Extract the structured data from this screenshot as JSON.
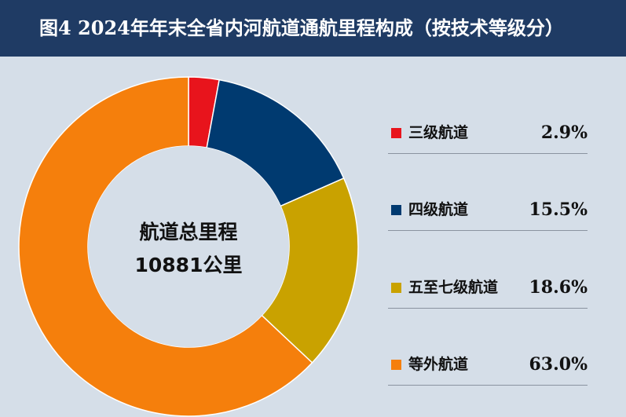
{
  "header": {
    "title": "图4  2024年年末全省内河航道通航里程构成（按技术等级分）"
  },
  "center": {
    "line1": "航道总里程",
    "line2": "10881公里"
  },
  "chart_data": {
    "type": "pie",
    "donut": true,
    "title": "图4  2024年年末全省内河航道通航里程构成（按技术等级分）",
    "unit": "%",
    "legend_position": "right",
    "start_angle_deg": 0,
    "direction": "clockwise",
    "slices": [
      {
        "label": "三级航道",
        "value": 2.9,
        "value_label": "2.9%",
        "color": "#e8141c"
      },
      {
        "label": "四级航道",
        "value": 15.5,
        "value_label": "15.5%",
        "color": "#003a70"
      },
      {
        "label": "五至七级航道",
        "value": 18.6,
        "value_label": "18.6%",
        "color": "#c9a200"
      },
      {
        "label": "等外航道",
        "value": 63.0,
        "value_label": "63.0%",
        "color": "#f57f0c"
      }
    ]
  }
}
